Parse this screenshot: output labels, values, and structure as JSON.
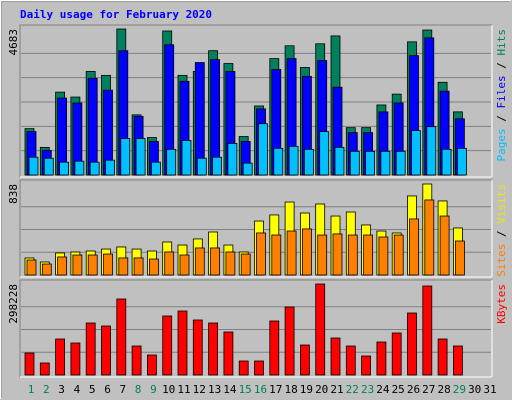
{
  "title": "Daily usage for February 2020",
  "categories": [
    "1",
    "2",
    "3",
    "4",
    "5",
    "6",
    "7",
    "8",
    "9",
    "10",
    "11",
    "12",
    "13",
    "14",
    "15",
    "16",
    "17",
    "18",
    "19",
    "20",
    "21",
    "22",
    "23",
    "24",
    "25",
    "26",
    "27",
    "28",
    "29",
    "30",
    "31"
  ],
  "category_colors": [
    "#00805c",
    "#00805c",
    "#000000",
    "#000000",
    "#000000",
    "#000000",
    "#000000",
    "#00805c",
    "#00805c",
    "#000000",
    "#000000",
    "#000000",
    "#000000",
    "#000000",
    "#00805c",
    "#00805c",
    "#000000",
    "#000000",
    "#000000",
    "#000000",
    "#000000",
    "#00805c",
    "#00805c",
    "#000000",
    "#000000",
    "#000000",
    "#000000",
    "#000000",
    "#00805c",
    "#000000",
    "#000000"
  ],
  "chart_data": [
    {
      "type": "bar",
      "ylim": [
        0,
        4683
      ],
      "yticks": [
        4683
      ],
      "grid_divisions": 6,
      "legend_separator": "/",
      "series": [
        {
          "name": "Pages",
          "color": "#00c0ff",
          "values": [
            570,
            538,
            411,
            443,
            411,
            475,
            1171,
            1171,
            411,
            823,
            1107,
            538,
            570,
            1012,
            380,
            1645,
            854,
            918,
            823,
            1392,
            886,
            759,
            759,
            759,
            759,
            1424,
            1550,
            823,
            854,
            null,
            null
          ]
        },
        {
          "name": "Files",
          "color": "#0000ff",
          "values": [
            1392,
            791,
            2468,
            2310,
            3101,
            2721,
            3987,
            1880,
            1076,
            4177,
            3006,
            3607,
            3702,
            3322,
            1076,
            2120,
            3386,
            3734,
            3164,
            3670,
            2816,
            1361,
            1361,
            2025,
            2310,
            3828,
            4398,
            2689,
            1803,
            null,
            null
          ]
        },
        {
          "name": "Hits",
          "color": "#00805c",
          "values": [
            1487,
            886,
            2658,
            2500,
            3322,
            3196,
            4683,
            1930,
            1202,
            4619,
            3196,
            3322,
            3987,
            3575,
            1234,
            2215,
            3734,
            4145,
            3449,
            4208,
            4461,
            1519,
            1519,
            2246,
            2594,
            4271,
            4650,
            2974,
            2025,
            null,
            null
          ]
        }
      ]
    },
    {
      "type": "bar",
      "ylim": [
        0,
        838
      ],
      "yticks": [
        838
      ],
      "grid_divisions": 4,
      "legend_separator": "/",
      "series": [
        {
          "name": "Sites",
          "color": "#ff8000",
          "values": [
            138,
            101,
            166,
            184,
            184,
            193,
            157,
            157,
            147,
            212,
            184,
            249,
            249,
            212,
            193,
            387,
            368,
            405,
            424,
            368,
            378,
            368,
            368,
            350,
            368,
            516,
            691,
            543,
            313,
            null,
            null
          ]
        },
        {
          "name": "Visits",
          "color": "#ffff00",
          "values": [
            157,
            120,
            203,
            212,
            221,
            239,
            258,
            239,
            221,
            304,
            276,
            332,
            396,
            276,
            212,
            497,
            553,
            672,
            571,
            654,
            543,
            580,
            461,
            405,
            387,
            728,
            838,
            682,
            433,
            null,
            null
          ]
        }
      ]
    },
    {
      "type": "bar",
      "ylim": [
        0,
        298228
      ],
      "yticks": [
        298228
      ],
      "grid_divisions": 4,
      "legend_separator": "/",
      "series": [
        {
          "name": "KBytes",
          "color": "#ff0000",
          "values": [
            72094,
            39324,
            117972,
            104864,
            170404,
            160573,
            249052,
            95033,
            65540,
            193343,
            209728,
            180235,
            170404,
            140911,
            45878,
            45878,
            176958,
            222836,
            98310,
            298228,
            121249,
            95033,
            62263,
            108141,
            137634,
            203174,
            291653,
            117972,
            95033,
            null,
            null
          ]
        }
      ]
    }
  ]
}
